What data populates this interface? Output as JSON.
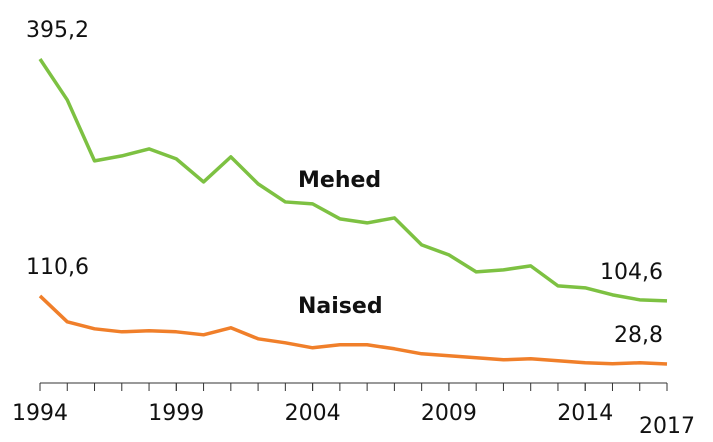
{
  "chart_data": {
    "type": "line",
    "x": [
      1994,
      1995,
      1996,
      1997,
      1998,
      1999,
      2000,
      2001,
      2002,
      2003,
      2004,
      2005,
      2006,
      2007,
      2008,
      2009,
      2010,
      2011,
      2012,
      2013,
      2014,
      2015,
      2016,
      2017
    ],
    "xlim": [
      1994,
      2017
    ],
    "xticks": [
      1994,
      1999,
      2004,
      2009,
      2014,
      2017
    ],
    "ylim": [
      0,
      400
    ],
    "series": [
      {
        "name": "Mehed",
        "color": "#7dc142",
        "values": [
          395.2,
          346.0,
          272.8,
          278.8,
          287.2,
          275.2,
          247.5,
          277.6,
          245.2,
          223.5,
          221.2,
          203.2,
          198.3,
          204.3,
          171.9,
          159.9,
          139.5,
          141.9,
          146.7,
          122.7,
          120.3,
          111.9,
          105.9,
          104.6
        ],
        "value_labels": [
          "395,2",
          null,
          null,
          null,
          null,
          null,
          null,
          null,
          null,
          null,
          null,
          null,
          null,
          null,
          null,
          null,
          null,
          null,
          null,
          null,
          null,
          null,
          null,
          "104,6"
        ]
      },
      {
        "name": "Naised",
        "color": "#f07f2a",
        "values": [
          110.6,
          79.5,
          71.1,
          67.5,
          68.7,
          67.5,
          63.9,
          72.3,
          59.1,
          54.3,
          48.3,
          51.9,
          51.9,
          47.1,
          41.1,
          38.7,
          36.3,
          33.9,
          35.1,
          32.7,
          30.3,
          29.1,
          30.3,
          28.8
        ],
        "value_labels": [
          "110,6",
          null,
          null,
          null,
          null,
          null,
          null,
          null,
          null,
          null,
          null,
          null,
          null,
          null,
          null,
          null,
          null,
          null,
          null,
          null,
          null,
          null,
          null,
          "28,8"
        ]
      }
    ]
  }
}
